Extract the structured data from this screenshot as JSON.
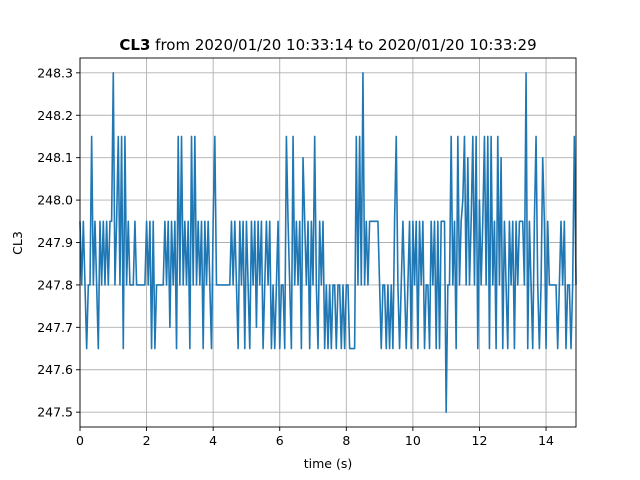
{
  "chart_data": {
    "type": "line",
    "title_bold": "CL3",
    "title_rest": " from 2020/01/20 10:33:14 to 2020/01/20 10:33:29",
    "xlabel": "time (s)",
    "ylabel": "CL3",
    "xlim": [
      0,
      14.9
    ],
    "ylim": [
      247.465,
      248.335
    ],
    "xticks": [
      0,
      2,
      4,
      6,
      8,
      10,
      12,
      14
    ],
    "xtick_labels": [
      "0",
      "2",
      "4",
      "6",
      "8",
      "10",
      "12",
      "14"
    ],
    "yticks": [
      247.5,
      247.6,
      247.7,
      247.8,
      247.9,
      248.0,
      248.1,
      248.2,
      248.3
    ],
    "ytick_labels": [
      "247.5",
      "247.6",
      "247.7",
      "247.8",
      "247.9",
      "248.0",
      "248.1",
      "248.2",
      "248.3"
    ],
    "grid": true,
    "line_color": "#1f77b4",
    "series": [
      {
        "x": [
          0.0,
          0.05,
          0.1,
          0.15,
          0.2,
          0.25,
          0.3,
          0.35,
          0.4,
          0.45,
          0.5,
          0.55,
          0.6,
          0.65,
          0.7,
          0.75,
          0.8,
          0.85,
          0.9,
          0.95,
          1.0,
          1.05,
          1.1,
          1.15,
          1.2,
          1.25,
          1.3,
          1.35,
          1.4,
          1.45,
          1.5,
          1.55,
          1.6,
          1.65,
          1.7,
          1.75,
          1.8,
          1.85,
          1.9,
          1.95,
          2.0,
          2.05,
          2.1,
          2.15,
          2.2,
          2.25,
          2.3,
          2.35,
          2.4,
          2.45,
          2.5,
          2.55,
          2.6,
          2.65,
          2.7,
          2.75,
          2.8,
          2.85,
          2.9,
          2.95,
          3.0,
          3.05,
          3.1,
          3.15,
          3.2,
          3.25,
          3.3,
          3.35,
          3.4,
          3.45,
          3.5,
          3.55,
          3.6,
          3.65,
          3.7,
          3.75,
          3.8,
          3.85,
          3.9,
          3.95,
          4.0,
          4.05,
          4.1,
          4.15,
          4.2,
          4.25,
          4.3,
          4.35,
          4.4,
          4.45,
          4.5,
          4.55,
          4.6,
          4.65,
          4.7,
          4.75,
          4.8,
          4.85,
          4.9,
          4.95,
          5.0,
          5.05,
          5.1,
          5.15,
          5.2,
          5.25,
          5.3,
          5.35,
          5.4,
          5.45,
          5.5,
          5.55,
          5.6,
          5.65,
          5.7,
          5.75,
          5.8,
          5.85,
          5.9,
          5.95,
          6.0,
          6.05,
          6.1,
          6.15,
          6.2,
          6.25,
          6.3,
          6.35,
          6.4,
          6.45,
          6.5,
          6.55,
          6.6,
          6.65,
          6.7,
          6.75,
          6.8,
          6.85,
          6.9,
          6.95,
          7.0,
          7.05,
          7.1,
          7.15,
          7.2,
          7.25,
          7.3,
          7.35,
          7.4,
          7.45,
          7.5,
          7.55,
          7.6,
          7.65,
          7.7,
          7.75,
          7.8,
          7.85,
          7.9,
          7.95,
          8.0,
          8.05,
          8.1,
          8.15,
          8.2,
          8.25,
          8.3,
          8.35,
          8.4,
          8.45,
          8.5,
          8.55,
          8.6,
          8.65,
          8.7,
          8.75,
          8.8,
          8.85,
          8.9,
          8.95,
          9.0,
          9.05,
          9.1,
          9.15,
          9.2,
          9.25,
          9.3,
          9.35,
          9.4,
          9.45,
          9.5,
          9.55,
          9.6,
          9.65,
          9.7,
          9.75,
          9.8,
          9.85,
          9.9,
          9.95,
          10.0,
          10.05,
          10.1,
          10.15,
          10.2,
          10.25,
          10.3,
          10.35,
          10.4,
          10.45,
          10.5,
          10.55,
          10.6,
          10.65,
          10.7,
          10.75,
          10.8,
          10.85,
          10.9,
          10.95,
          11.0,
          11.05,
          11.1,
          11.15,
          11.2,
          11.25,
          11.3,
          11.35,
          11.4,
          11.45,
          11.5,
          11.55,
          11.6,
          11.65,
          11.7,
          11.75,
          11.8,
          11.85,
          11.9,
          11.95,
          12.0,
          12.05,
          12.1,
          12.15,
          12.2,
          12.25,
          12.3,
          12.35,
          12.4,
          12.45,
          12.5,
          12.55,
          12.6,
          12.65,
          12.7,
          12.75,
          12.8,
          12.85,
          12.9,
          12.95,
          13.0,
          13.05,
          13.1,
          13.15,
          13.2,
          13.25,
          13.3,
          13.35,
          13.4,
          13.45,
          13.5,
          13.55,
          13.6,
          13.65,
          13.7,
          13.75,
          13.8,
          13.85,
          13.9,
          13.95,
          14.0,
          14.05,
          14.1,
          14.15,
          14.2,
          14.25,
          14.3,
          14.35,
          14.4,
          14.45,
          14.5,
          14.55,
          14.6,
          14.65,
          14.7,
          14.75,
          14.8,
          14.85,
          14.9
        ],
        "y": [
          247.95,
          247.8,
          247.95,
          247.8,
          247.65,
          247.8,
          247.8,
          248.15,
          247.8,
          247.95,
          247.8,
          247.65,
          247.95,
          247.8,
          247.95,
          247.8,
          247.95,
          247.8,
          247.95,
          247.95,
          248.3,
          247.8,
          247.95,
          248.15,
          247.8,
          248.15,
          247.65,
          248.15,
          247.8,
          247.95,
          247.8,
          247.8,
          247.8,
          247.95,
          247.8,
          247.8,
          247.8,
          247.8,
          247.8,
          247.8,
          247.95,
          247.8,
          247.95,
          247.65,
          247.95,
          247.65,
          247.8,
          247.8,
          247.8,
          247.8,
          247.8,
          247.95,
          247.8,
          247.95,
          247.7,
          247.95,
          247.8,
          247.95,
          247.65,
          248.15,
          247.8,
          248.15,
          247.8,
          247.95,
          247.8,
          247.95,
          247.65,
          248.15,
          247.8,
          248.15,
          247.8,
          247.95,
          247.8,
          247.95,
          247.65,
          247.95,
          247.8,
          247.95,
          247.8,
          247.65,
          247.95,
          248.15,
          247.8,
          247.8,
          247.8,
          247.8,
          247.8,
          247.8,
          247.8,
          247.8,
          247.8,
          247.95,
          247.8,
          247.95,
          247.8,
          247.65,
          247.95,
          247.8,
          247.95,
          247.65,
          247.95,
          247.8,
          247.65,
          247.95,
          247.8,
          247.95,
          247.7,
          247.95,
          247.8,
          247.95,
          247.65,
          247.8,
          247.95,
          247.8,
          247.95,
          247.65,
          247.8,
          247.65,
          247.8,
          247.95,
          247.65,
          247.8,
          247.8,
          247.65,
          248.15,
          247.95,
          247.8,
          247.65,
          248.15,
          247.8,
          247.95,
          247.8,
          247.95,
          247.65,
          248.1,
          247.95,
          247.8,
          247.95,
          247.65,
          247.95,
          247.8,
          248.15,
          247.8,
          247.65,
          247.95,
          247.8,
          247.95,
          247.65,
          247.8,
          247.65,
          247.8,
          247.65,
          247.8,
          247.8,
          247.65,
          247.8,
          247.8,
          247.65,
          247.8,
          247.65,
          247.8,
          247.8,
          247.65,
          247.65,
          247.65,
          247.65,
          248.15,
          247.8,
          248.15,
          247.8,
          248.3,
          247.8,
          247.95,
          247.8,
          247.95,
          247.95,
          247.95,
          247.95,
          247.95,
          247.95,
          247.8,
          247.65,
          247.8,
          247.8,
          247.65,
          247.8,
          247.65,
          247.8,
          247.65,
          247.95,
          248.15,
          247.8,
          247.65,
          247.8,
          247.95,
          247.8,
          247.65,
          247.8,
          247.95,
          247.65,
          247.95,
          247.8,
          247.95,
          247.65,
          247.95,
          247.8,
          247.95,
          247.65,
          247.8,
          247.8,
          247.65,
          247.95,
          247.8,
          247.95,
          247.65,
          247.95,
          247.65,
          247.95,
          247.95,
          247.95,
          247.5,
          247.8,
          247.8,
          248.15,
          247.8,
          247.95,
          247.65,
          248.15,
          247.8,
          247.95,
          248.0,
          248.15,
          247.8,
          248.1,
          247.8,
          247.95,
          248.15,
          247.8,
          248.15,
          247.65,
          248.0,
          247.8,
          247.95,
          248.15,
          247.8,
          248.15,
          247.65,
          248.15,
          247.8,
          247.95,
          247.65,
          248.15,
          247.8,
          248.1,
          247.65,
          247.95,
          247.8,
          247.65,
          247.95,
          247.8,
          247.95,
          247.65,
          247.95,
          247.8,
          247.95,
          247.95,
          247.95,
          247.8,
          248.3,
          247.65,
          247.95,
          247.8,
          247.65,
          247.95,
          248.15,
          247.8,
          247.65,
          247.8,
          248.1,
          247.95,
          247.65,
          247.95,
          247.8,
          247.8,
          247.8,
          247.8,
          247.8,
          247.65,
          247.8,
          247.95,
          247.8,
          247.95,
          247.65,
          247.8,
          247.8,
          247.65,
          247.8,
          248.15,
          247.8
        ]
      }
    ]
  }
}
